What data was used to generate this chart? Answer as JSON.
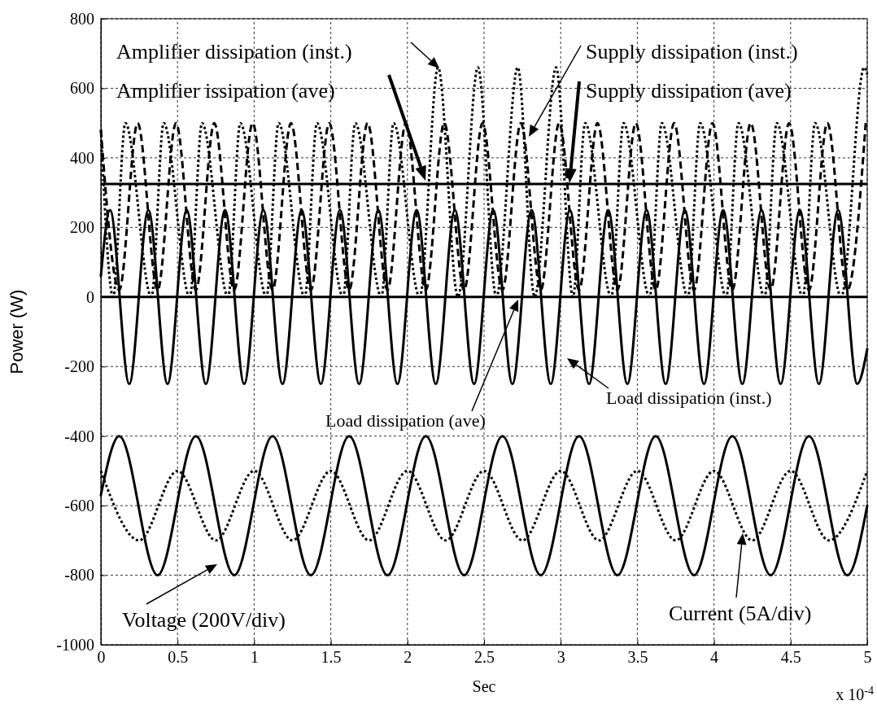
{
  "chart_data": {
    "type": "line",
    "xlabel": "Sec",
    "ylabel": "Power (W)",
    "xlim": [
      0,
      5
    ],
    "xticks": [
      0,
      0.5,
      1,
      1.5,
      2,
      2.5,
      3,
      3.5,
      4,
      4.5,
      5
    ],
    "ylim": [
      -1000,
      800
    ],
    "yticks": [
      -1000,
      -800,
      -600,
      -400,
      -200,
      0,
      200,
      400,
      600,
      800
    ],
    "grid": true,
    "marker": "none",
    "series": [
      {
        "color": "#000000",
        "line_style": "dotted",
        "x": [
          0,
          0.08,
          0.16,
          0.33,
          0.41,
          0.58,
          0.66,
          0.83,
          0.91,
          1.08,
          1.16,
          1.33,
          1.41,
          1.58,
          1.66,
          1.83,
          1.91,
          2.08,
          2.2,
          2.33,
          2.46,
          2.58,
          2.72,
          2.83,
          2.97,
          3.08,
          3.16,
          3.33,
          3.41,
          3.58,
          3.66,
          3.83,
          3.91,
          4.08,
          4.16,
          4.33,
          4.41,
          4.58,
          4.66,
          4.83,
          4.98,
          5
        ],
        "values": [
          480,
          0,
          500,
          0,
          500,
          0,
          500,
          0,
          500,
          0,
          500,
          0,
          500,
          0,
          500,
          0,
          500,
          0,
          660,
          0,
          660,
          0,
          660,
          0,
          660,
          0,
          500,
          0,
          500,
          0,
          500,
          0,
          500,
          0,
          500,
          0,
          500,
          0,
          500,
          0,
          660,
          640
        ]
      },
      {
        "color": "#000000",
        "line_style": "dashed",
        "x": [
          0,
          0.12,
          0.24,
          0.37,
          0.49,
          0.62,
          0.74,
          0.87,
          0.99,
          1.12,
          1.24,
          1.37,
          1.49,
          1.62,
          1.74,
          1.87,
          1.99,
          2.12,
          2.24,
          2.37,
          2.49,
          2.62,
          2.74,
          2.87,
          2.99,
          3.12,
          3.24,
          3.37,
          3.49,
          3.62,
          3.74,
          3.87,
          3.99,
          4.12,
          4.24,
          4.37,
          4.49,
          4.62,
          4.74,
          4.87,
          4.99
        ],
        "values": [
          480,
          20,
          500,
          20,
          500,
          20,
          500,
          20,
          500,
          20,
          500,
          20,
          500,
          20,
          500,
          20,
          500,
          20,
          500,
          20,
          500,
          20,
          500,
          20,
          500,
          20,
          500,
          20,
          500,
          20,
          500,
          20,
          500,
          20,
          500,
          20,
          500,
          20,
          500,
          20,
          500
        ]
      },
      {
        "color": "#000000",
        "line_style": "solid",
        "x": [
          0,
          0.06,
          0.185,
          0.31,
          0.435,
          0.56,
          0.685,
          0.81,
          0.935,
          1.06,
          1.185,
          1.31,
          1.435,
          1.56,
          1.685,
          1.81,
          1.935,
          2.06,
          2.185,
          2.31,
          2.435,
          2.56,
          2.685,
          2.81,
          2.935,
          3.06,
          3.185,
          3.31,
          3.435,
          3.56,
          3.685,
          3.81,
          3.935,
          4.06,
          4.185,
          4.31,
          4.435,
          4.56,
          4.685,
          4.81,
          4.935,
          5
        ],
        "values": [
          60,
          250,
          -250,
          250,
          -250,
          250,
          -250,
          250,
          -250,
          250,
          -250,
          250,
          -250,
          250,
          -250,
          250,
          -250,
          250,
          -250,
          250,
          -250,
          250,
          -250,
          250,
          -250,
          250,
          -250,
          250,
          -250,
          250,
          -250,
          250,
          -250,
          250,
          -250,
          250,
          -250,
          250,
          -250,
          250,
          -250,
          -150
        ]
      },
      {
        "color": "#000000",
        "line_style": "solid",
        "x": [
          0,
          0.12,
          0.37,
          0.62,
          0.87,
          1.12,
          1.37,
          1.62,
          1.87,
          2.12,
          2.37,
          2.62,
          2.87,
          3.12,
          3.37,
          3.62,
          3.87,
          4.12,
          4.37,
          4.62,
          4.87,
          5
        ],
        "values": [
          -570,
          -400,
          -800,
          -400,
          -800,
          -400,
          -800,
          -400,
          -800,
          -400,
          -800,
          -400,
          -800,
          -400,
          -800,
          -400,
          -800,
          -400,
          -800,
          -400,
          -800,
          -600
        ]
      },
      {
        "color": "#000000",
        "line_style": "dotted",
        "x": [
          0,
          0.25,
          0.5,
          0.75,
          1,
          1.25,
          1.5,
          1.75,
          2,
          2.25,
          2.5,
          2.75,
          3,
          3.25,
          3.5,
          3.75,
          4,
          4.25,
          4.5,
          4.75,
          5
        ],
        "values": [
          -500,
          -700,
          -500,
          -700,
          -500,
          -700,
          -500,
          -700,
          -500,
          -700,
          -500,
          -700,
          -500,
          -700,
          -500,
          -700,
          -500,
          -700,
          -500,
          -700,
          -500
        ]
      }
    ],
    "ref_lines": [
      {
        "axis": "y",
        "value": 325,
        "color": "#000000",
        "line_style": "solid"
      },
      {
        "axis": "y",
        "value": 0,
        "color": "#000000",
        "line_style": "solid"
      }
    ],
    "annotations": [
      "Amplifier dissipation (inst.)",
      "Amplifier issipation (ave)",
      "Supply dissipation (inst.)",
      "Supply dissipation (ave)",
      "Load dissipation (inst.)",
      "Load dissipation (ave)",
      "Voltage (200V/div)",
      "Current (5A/div)",
      "x 10$^{-4}$"
    ]
  }
}
